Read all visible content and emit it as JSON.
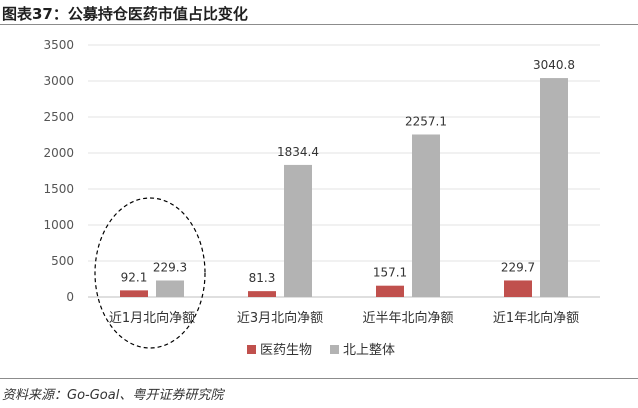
{
  "figure": {
    "title": "图表37：公募持仓医药市值占比变化",
    "source": "资料来源：Go-Goal、粤开证券研究院"
  },
  "chart_data": {
    "type": "bar",
    "categories": [
      "近1月北向净额",
      "近3月北向净额",
      "近半年北向净额",
      "近1年北向净额"
    ],
    "series": [
      {
        "name": "医药生物",
        "color": "#c0504d",
        "values": [
          92.1,
          81.3,
          157.1,
          229.7
        ]
      },
      {
        "name": "北上整体",
        "color": "#b3b3b3",
        "values": [
          229.3,
          1834.4,
          2257.1,
          3040.8
        ]
      }
    ],
    "yticks": [
      0,
      500,
      1000,
      1500,
      2000,
      2500,
      3000,
      3500
    ],
    "ylim": [
      0,
      3500
    ],
    "grid": true,
    "legend": "bottom-center",
    "annotation": "dashed ellipse around 近1月北向净额 group"
  }
}
